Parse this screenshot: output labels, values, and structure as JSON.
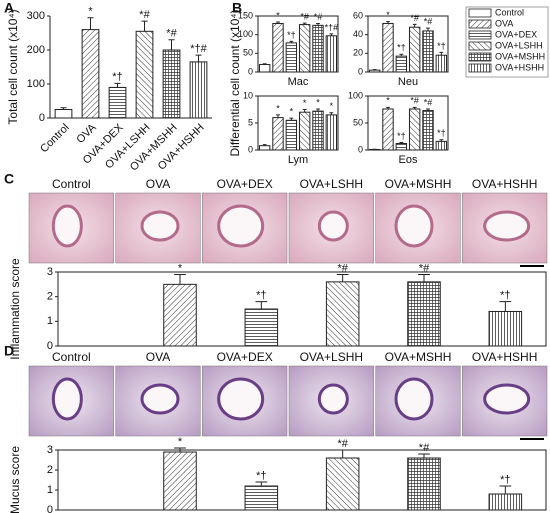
{
  "chart_data": [
    {
      "type": "bar",
      "panel": "A",
      "ylabel": "Total cell count (x10⁴)",
      "categories": [
        "Control",
        "OVA",
        "OVA+DEX",
        "OVA+LSHH",
        "OVA+MSHH",
        "OVA+HSHH"
      ],
      "values": [
        25,
        260,
        90,
        255,
        200,
        165
      ],
      "errors": [
        5,
        35,
        12,
        30,
        30,
        20
      ],
      "annotations": [
        null,
        "*",
        "*†",
        "*#",
        "*#",
        "*†#"
      ],
      "ylim": [
        0,
        300
      ],
      "yticks": [
        0,
        100,
        200,
        300
      ],
      "frame": false
    },
    {
      "type": "bar",
      "panel": "B",
      "ylabel": "Differential cell count (x10⁴)",
      "xlabel": "Mac",
      "categories": [
        "Control",
        "OVA",
        "OVA+DEX",
        "OVA+LSHH",
        "OVA+MSHH",
        "OVA+HSHH"
      ],
      "patterns": [
        "none",
        "diagonal",
        "horizontal",
        "back-diagonal",
        "grid",
        "vertical"
      ],
      "values": [
        20,
        130,
        78,
        127,
        125,
        97
      ],
      "errors": [
        2,
        4,
        4,
        4,
        5,
        5
      ],
      "annotations": [
        null,
        "*",
        "*†",
        "*#",
        "*#",
        "*†#"
      ],
      "ylim": [
        0,
        150
      ],
      "yticks": [
        0,
        50,
        100,
        150
      ],
      "frame": true,
      "legend": "right"
    },
    {
      "type": "bar",
      "xlabel": "Neu",
      "values": [
        2,
        52,
        17,
        48,
        44,
        18
      ],
      "errors": [
        0.5,
        2,
        2,
        3,
        3,
        3
      ],
      "annotations": [
        null,
        "*",
        "*†",
        "*#",
        "*#",
        "*†"
      ],
      "ylim": [
        0,
        60
      ],
      "yticks": [
        0,
        20,
        40,
        60
      ],
      "frame": true
    },
    {
      "type": "bar",
      "xlabel": "Lym",
      "values": [
        0.8,
        6,
        5.5,
        7,
        7.2,
        6.5
      ],
      "errors": [
        0.2,
        0.5,
        0.4,
        0.5,
        0.4,
        0.4
      ],
      "annotations": [
        null,
        "*",
        "*",
        "*",
        "*",
        "*"
      ],
      "ylim": [
        0,
        10
      ],
      "yticks": [
        0,
        5,
        10
      ],
      "frame": true
    },
    {
      "type": "bar",
      "xlabel": "Eos",
      "values": [
        1,
        76,
        12,
        76,
        73,
        16
      ],
      "errors": [
        0.5,
        3,
        2,
        3,
        3,
        3
      ],
      "annotations": [
        null,
        "*",
        "*†",
        "*#",
        "*#",
        "*†"
      ],
      "ylim": [
        0,
        100
      ],
      "yticks": [
        0,
        50,
        100
      ],
      "frame": true
    },
    {
      "type": "bar",
      "panel": "C",
      "ylabel": "Inflammation score",
      "categories": [
        "Control",
        "OVA",
        "OVA+DEX",
        "OVA+LSHH",
        "OVA+MSHH",
        "OVA+HSHH"
      ],
      "values": [
        0,
        2.5,
        1.5,
        2.6,
        2.6,
        1.4
      ],
      "errors": [
        0,
        0.4,
        0.3,
        0.3,
        0.3,
        0.4
      ],
      "annotations": [
        null,
        "*",
        "*†",
        "*#",
        "*#",
        "*†"
      ],
      "ylim": [
        0,
        3
      ],
      "yticks": [
        0,
        1,
        2,
        3
      ],
      "frame": true
    },
    {
      "type": "bar",
      "panel": "D",
      "ylabel": "Mucus score",
      "categories": [
        "Control",
        "OVA",
        "OVA+DEX",
        "OVA+LSHH",
        "OVA+MSHH",
        "OVA+HSHH"
      ],
      "values": [
        0,
        2.9,
        1.2,
        2.6,
        2.6,
        0.8
      ],
      "errors": [
        0,
        0.2,
        0.2,
        0.4,
        0.2,
        0.4
      ],
      "annotations": [
        null,
        "*",
        "*†",
        "*#",
        "*#",
        "*†"
      ],
      "ylim": [
        0,
        3
      ],
      "yticks": [
        0,
        1,
        2,
        3
      ],
      "frame": true
    }
  ]
}
